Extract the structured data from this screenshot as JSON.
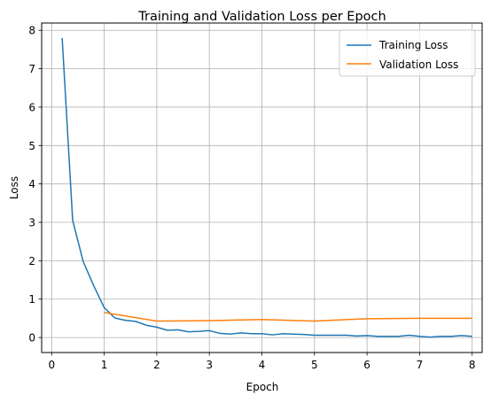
{
  "chart_data": {
    "type": "line",
    "title": "Training and Validation Loss per Epoch",
    "xlabel": "Epoch",
    "ylabel": "Loss",
    "xlim": [
      -0.19,
      8.19
    ],
    "ylim": [
      -0.39,
      8.19
    ],
    "xticks": [
      0,
      1,
      2,
      3,
      4,
      5,
      6,
      7,
      8
    ],
    "yticks": [
      0,
      1,
      2,
      3,
      4,
      5,
      6,
      7,
      8
    ],
    "grid": true,
    "legend_position": "top-right",
    "series": [
      {
        "name": "Training Loss",
        "color": "#1f77b4",
        "x": [
          0.2,
          0.4,
          0.6,
          0.8,
          1.0,
          1.2,
          1.4,
          1.6,
          1.8,
          2.0,
          2.2,
          2.4,
          2.6,
          2.8,
          3.0,
          3.2,
          3.4,
          3.6,
          3.8,
          4.0,
          4.2,
          4.4,
          4.6,
          4.8,
          5.0,
          5.2,
          5.4,
          5.6,
          5.8,
          6.0,
          6.2,
          6.4,
          6.6,
          6.8,
          7.0,
          7.2,
          7.4,
          7.6,
          7.8,
          8.0
        ],
        "y": [
          7.8,
          3.05,
          1.98,
          1.35,
          0.78,
          0.51,
          0.45,
          0.42,
          0.32,
          0.27,
          0.19,
          0.2,
          0.15,
          0.16,
          0.18,
          0.11,
          0.09,
          0.12,
          0.1,
          0.1,
          0.07,
          0.1,
          0.09,
          0.08,
          0.06,
          0.06,
          0.06,
          0.06,
          0.04,
          0.05,
          0.03,
          0.03,
          0.03,
          0.06,
          0.03,
          0.01,
          0.03,
          0.03,
          0.05,
          0.03
        ]
      },
      {
        "name": "Validation Loss",
        "color": "#ff7f0e",
        "x": [
          1,
          2,
          3,
          4,
          5,
          6,
          7,
          8
        ],
        "y": [
          0.65,
          0.43,
          0.44,
          0.47,
          0.43,
          0.49,
          0.5,
          0.5
        ]
      }
    ]
  }
}
